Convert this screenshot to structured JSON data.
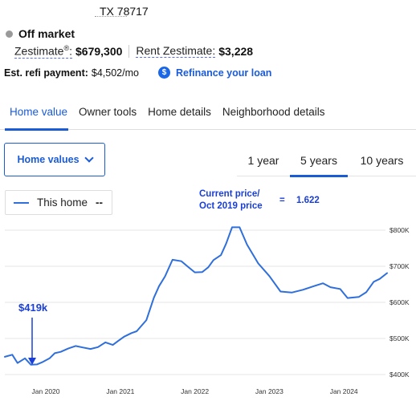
{
  "address": "TX 78717",
  "status": "Off market",
  "zestimate": {
    "label": "Zestimate",
    "value": "$679,300"
  },
  "rent_zestimate": {
    "label": "Rent Zestimate",
    "value": "$3,228"
  },
  "refi": {
    "label": "Est. refi payment:",
    "value": "$4,502/mo",
    "icon": "dollar-icon",
    "link": "Refinance your loan"
  },
  "tabs": [
    {
      "label": "Home value",
      "active": true
    },
    {
      "label": "Owner tools"
    },
    {
      "label": "Home details"
    },
    {
      "label": "Neighborhood details"
    }
  ],
  "dropdown_label": "Home values",
  "range_tabs": [
    {
      "label": "1 year"
    },
    {
      "label": "5 years",
      "active": true
    },
    {
      "label": "10 years"
    }
  ],
  "legend": {
    "label": "This home",
    "value": "--"
  },
  "annotations": {
    "line1": "Current price/",
    "line2": "Oct 2019 price",
    "eq": "=",
    "ratio": "1.622",
    "low_price": "$419k"
  },
  "colors": {
    "accent": "#1a5bd6",
    "line": "#2f6fdb",
    "annotation": "#1a3fd6"
  },
  "chart_data": {
    "type": "line",
    "ylim": [
      400,
      800
    ],
    "yticks": [
      400,
      500,
      600,
      700,
      800
    ],
    "ytick_labels": [
      "$400K",
      "$500K",
      "$600K",
      "$700K",
      "$800K"
    ],
    "xtick_labels": [
      "Jan 2020",
      "Jan 2021",
      "Jan 2022",
      "Jan 2023",
      "Jan 2024"
    ],
    "xtick_values": [
      2020.0,
      2021.0,
      2022.0,
      2023.0,
      2024.0
    ],
    "grid": true,
    "series": [
      {
        "name": "This home",
        "x": [
          2019.45,
          2019.55,
          2019.62,
          2019.72,
          2019.8,
          2019.88,
          2019.95,
          2020.05,
          2020.12,
          2020.2,
          2020.3,
          2020.4,
          2020.5,
          2020.6,
          2020.7,
          2020.8,
          2020.9,
          2020.97,
          2021.05,
          2021.15,
          2021.22,
          2021.35,
          2021.45,
          2021.52,
          2021.6,
          2021.7,
          2021.82,
          2021.9,
          2022.0,
          2022.1,
          2022.18,
          2022.25,
          2022.35,
          2022.42,
          2022.5,
          2022.6,
          2022.7,
          2022.85,
          2023.0,
          2023.15,
          2023.3,
          2023.45,
          2023.6,
          2023.72,
          2023.82,
          2023.95,
          2024.05,
          2024.2,
          2024.3,
          2024.4,
          2024.48,
          2024.58
        ],
        "values": [
          449,
          455,
          432,
          445,
          427,
          428,
          434,
          445,
          459,
          463,
          472,
          479,
          475,
          471,
          476,
          489,
          482,
          493,
          505,
          515,
          520,
          551,
          613,
          645,
          672,
          718,
          714,
          700,
          683,
          684,
          697,
          717,
          731,
          763,
          808,
          808,
          760,
          708,
          673,
          630,
          627,
          635,
          645,
          653,
          642,
          637,
          612,
          615,
          628,
          657,
          665,
          681
        ]
      }
    ]
  }
}
